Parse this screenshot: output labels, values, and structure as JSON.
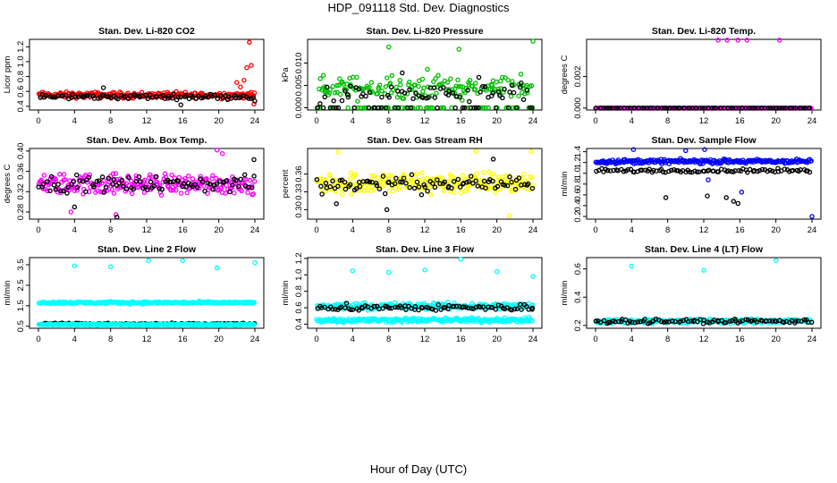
{
  "figure": {
    "title": "HDP_091118  Std. Dev. Diagnostics",
    "xlabel": "Hour of Day (UTC)"
  },
  "chart_data": [
    {
      "type": "scatter",
      "title": "Stan. Dev. Li-820 CO2",
      "ylabel": "Licor ppm",
      "xlim": [
        0,
        24
      ],
      "ylim": [
        0.35,
        1.3
      ],
      "xticks": [
        0,
        4,
        8,
        12,
        16,
        20,
        24
      ],
      "yticks": [
        0.4,
        0.6,
        0.8,
        1.0,
        1.2
      ],
      "yticklabels": [
        "0.4",
        "0.6",
        "0.8",
        "1.0",
        "1.2"
      ],
      "grid": false,
      "series": [
        {
          "color": "#ff0000",
          "base": 0.55,
          "spread": 0.06,
          "outliers": [
            [
              22.0,
              0.72
            ],
            [
              22.4,
              0.66
            ],
            [
              22.8,
              0.75
            ],
            [
              23.1,
              0.92
            ],
            [
              23.4,
              1.26
            ],
            [
              23.6,
              0.95
            ],
            [
              23.9,
              0.43
            ]
          ]
        },
        {
          "color": "#000000",
          "base": 0.53,
          "spread": 0.05,
          "outliers": [
            [
              7.2,
              0.65
            ],
            [
              15.8,
              0.42
            ],
            [
              24.0,
              0.47
            ]
          ]
        }
      ]
    },
    {
      "type": "scatter",
      "title": "Stan. Dev. Li-820 Pressure",
      "ylabel": "kPa",
      "xlim": [
        0,
        24
      ],
      "ylim": [
        -0.0005,
        0.0153
      ],
      "xticks": [
        0,
        4,
        8,
        12,
        16,
        20,
        24
      ],
      "yticks": [
        0.0,
        0.005,
        0.01
      ],
      "yticklabels": [
        "0.000",
        "0.005",
        "0.010"
      ],
      "grid": false,
      "series": [
        {
          "color": "#00c000",
          "base": 0.0045,
          "spread": 0.0035,
          "zeros": true,
          "outliers": [
            [
              8.0,
              0.0136
            ],
            [
              12.3,
              0.0086
            ],
            [
              15.8,
              0.0131
            ],
            [
              24.0,
              0.0149
            ]
          ]
        },
        {
          "color": "#000000",
          "base": 0.003,
          "spread": 0.003,
          "zeros": true,
          "outliers": [
            [
              9.5,
              0.0078
            ],
            [
              18.0,
              0.0068
            ]
          ]
        }
      ]
    },
    {
      "type": "scatter",
      "title": "Stan. Dev. Li-820 Temp.",
      "ylabel": "degrees C",
      "xlim": [
        0,
        24
      ],
      "ylim": [
        -0.00012,
        0.00435
      ],
      "xticks": [
        0,
        4,
        8,
        12,
        16,
        20,
        24
      ],
      "yticks": [
        0.0,
        0.002
      ],
      "yticklabels": [
        "0.000",
        "0.002"
      ],
      "grid": false,
      "series": [
        {
          "color": "#ff00ff",
          "base": 0.0,
          "spread": 0.0,
          "line_zero": true,
          "outliers": [
            [
              13.6,
              0.0043
            ],
            [
              14.6,
              0.0043
            ],
            [
              15.8,
              0.0043
            ],
            [
              16.8,
              0.0043
            ],
            [
              20.4,
              0.0043
            ]
          ]
        },
        {
          "color": "#000000",
          "base": 0.0,
          "spread": 0.0,
          "line_zero": true,
          "outliers": []
        }
      ]
    },
    {
      "type": "scatter",
      "title": "Stan. Dev. Amb. Box Temp.",
      "ylabel": "degrees C",
      "xlim": [
        0,
        24
      ],
      "ylim": [
        0.266,
        0.405
      ],
      "xticks": [
        0,
        4,
        8,
        12,
        16,
        20,
        24
      ],
      "yticks": [
        0.28,
        0.32,
        0.36,
        0.4
      ],
      "yticklabels": [
        "0.28",
        "0.32",
        "0.36",
        "0.40"
      ],
      "grid": false,
      "series": [
        {
          "color": "#ff00ff",
          "base": 0.335,
          "spread": 0.03,
          "outliers": [
            [
              19.8,
              0.402
            ],
            [
              20.4,
              0.395
            ],
            [
              3.6,
              0.28
            ],
            [
              8.6,
              0.275
            ]
          ]
        },
        {
          "color": "#000000",
          "base": 0.335,
          "spread": 0.022,
          "outliers": [
            [
              23.9,
              0.383
            ],
            [
              8.7,
              0.27
            ],
            [
              4.0,
              0.29
            ]
          ]
        }
      ]
    },
    {
      "type": "scatter",
      "title": "Stan. Dev. Gas Stream RH",
      "ylabel": "percent",
      "xlim": [
        0,
        24
      ],
      "ylim": [
        0.284,
        0.403
      ],
      "xticks": [
        0,
        4,
        8,
        12,
        16,
        20,
        24
      ],
      "yticks": [
        0.3,
        0.33,
        0.36
      ],
      "yticklabels": [
        "0.30",
        "0.33",
        "0.36"
      ],
      "grid": false,
      "series": [
        {
          "color": "#ffff00",
          "base": 0.345,
          "spread": 0.028,
          "outliers": [
            [
              2.4,
              0.397
            ],
            [
              17.7,
              0.398
            ],
            [
              23.8,
              0.398
            ],
            [
              21.4,
              0.29
            ]
          ]
        },
        {
          "color": "#000000",
          "base": 0.343,
          "spread": 0.02,
          "outliers": [
            [
              19.6,
              0.385
            ],
            [
              7.8,
              0.3
            ],
            [
              2.2,
              0.31
            ]
          ]
        }
      ]
    },
    {
      "type": "scatter",
      "title": "Stan. Dev. Sample Flow",
      "ylabel": "ml/min",
      "xlim": [
        0,
        24
      ],
      "ylim": [
        0.15,
        1.46
      ],
      "xticks": [
        0,
        4,
        8,
        12,
        16,
        20,
        24
      ],
      "yticks": [
        0.2,
        0.4,
        0.6,
        0.8,
        1.0,
        1.2,
        1.4
      ],
      "yticklabels": [
        "0.2",
        "0.4",
        "0.6",
        "0.8",
        "1.0",
        "1.2",
        "1.4"
      ],
      "grid": false,
      "series": [
        {
          "color": "#0000ff",
          "base": 1.22,
          "spread": 0.06,
          "outliers": [
            [
              4.2,
              1.44
            ],
            [
              10.0,
              1.42
            ],
            [
              12.1,
              1.44
            ],
            [
              12.5,
              0.88
            ],
            [
              16.2,
              0.65
            ],
            [
              24.0,
              0.2
            ]
          ]
        },
        {
          "color": "#000000",
          "base": 1.05,
          "spread": 0.05,
          "outliers": [
            [
              7.8,
              0.55
            ],
            [
              12.4,
              0.58
            ],
            [
              14.5,
              0.55
            ],
            [
              15.3,
              0.48
            ],
            [
              15.8,
              0.44
            ]
          ]
        }
      ]
    },
    {
      "type": "scatter",
      "title": "Stan. Dev. Line 2 Flow",
      "ylabel": "ml/min",
      "xlim": [
        0,
        24
      ],
      "ylim": [
        0.4,
        3.85
      ],
      "xticks": [
        0,
        4,
        8,
        12,
        16,
        20,
        24
      ],
      "yticks": [
        0.5,
        1.5,
        2.5,
        3.5
      ],
      "yticklabels": [
        "0.5",
        "1.5",
        "2.5",
        "3.5"
      ],
      "grid": false,
      "series": [
        {
          "color": "#00ffff",
          "base": 1.65,
          "spread": 0.08,
          "outliers": [
            [
              4.0,
              3.45
            ],
            [
              8.0,
              3.4
            ],
            [
              12.2,
              3.7
            ],
            [
              16.0,
              3.7
            ],
            [
              19.8,
              3.35
            ],
            [
              24.0,
              3.6
            ]
          ]
        },
        {
          "color": "#000000",
          "base": 0.62,
          "spread": 0.05,
          "outliers": []
        },
        {
          "color": "#00ffff",
          "base": 0.58,
          "spread": 0.04,
          "outliers": []
        }
      ]
    },
    {
      "type": "scatter",
      "title": "Stan. Dev. Line 3 Flow",
      "ylabel": "ml/min",
      "xlim": [
        0,
        24
      ],
      "ylim": [
        0.35,
        1.21
      ],
      "xticks": [
        0,
        4,
        8,
        12,
        16,
        20,
        24
      ],
      "yticks": [
        0.4,
        0.6,
        0.8,
        1.0,
        1.2
      ],
      "yticklabels": [
        "0.4",
        "0.6",
        "0.8",
        "1.0",
        "1.2"
      ],
      "grid": false,
      "series": [
        {
          "color": "#00ffff",
          "base": 0.62,
          "spread": 0.06,
          "outliers": [
            [
              4.0,
              1.05
            ],
            [
              8.0,
              1.03
            ],
            [
              12.0,
              1.06
            ],
            [
              16.0,
              1.19
            ],
            [
              20.0,
              1.04
            ],
            [
              24.0,
              0.98
            ]
          ]
        },
        {
          "color": "#00ffff",
          "base": 0.45,
          "spread": 0.04,
          "outliers": []
        },
        {
          "color": "#000000",
          "base": 0.6,
          "spread": 0.06,
          "outliers": [
            [
              23.9,
              0.58
            ]
          ]
        }
      ]
    },
    {
      "type": "scatter",
      "title": "Stan. Dev. Line 4 (LT) Flow",
      "ylabel": "ml/min",
      "xlim": [
        0,
        24
      ],
      "ylim": [
        0.18,
        0.68
      ],
      "xticks": [
        0,
        4,
        8,
        12,
        16,
        20,
        24
      ],
      "yticks": [
        0.2,
        0.4,
        0.6
      ],
      "yticklabels": [
        "0.2",
        "0.4",
        "0.6"
      ],
      "grid": false,
      "series": [
        {
          "color": "#00ffff",
          "base": 0.23,
          "spread": 0.025,
          "outliers": [
            [
              4.0,
              0.62
            ],
            [
              12.0,
              0.59
            ],
            [
              20.0,
              0.66
            ]
          ]
        },
        {
          "color": "#000000",
          "base": 0.23,
          "spread": 0.02,
          "outliers": []
        }
      ]
    }
  ]
}
